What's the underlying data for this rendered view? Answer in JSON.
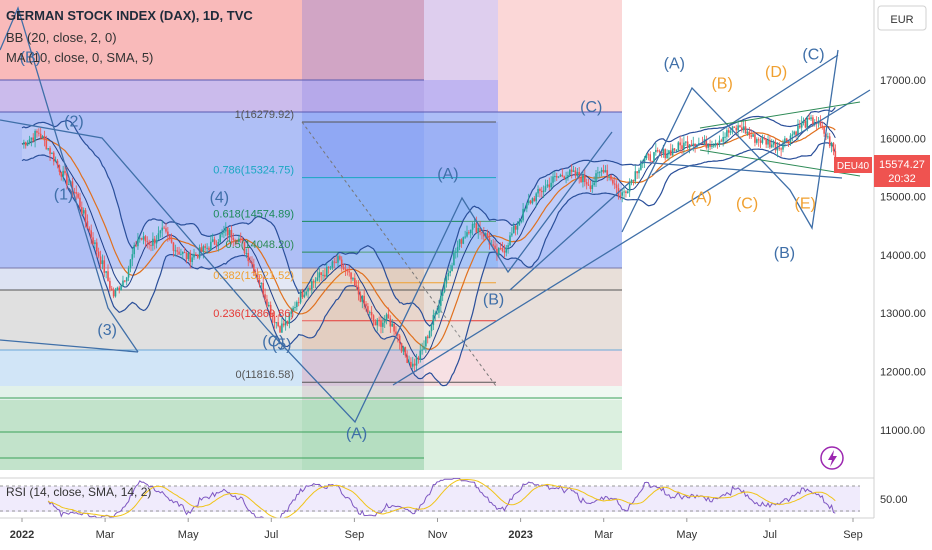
{
  "header": {
    "title": "GERMAN STOCK INDEX (DAX), 1D, TVC",
    "indicator_bb": "BB (20, close, 2, 0)",
    "indicator_ma": "MA (10, close, 0, SMA, 5)",
    "currency": "EUR"
  },
  "price_axis": {
    "ticks": [
      {
        "value": 17000,
        "label": "17000.00"
      },
      {
        "value": 16000,
        "label": "16000.00"
      },
      {
        "value": 15000,
        "label": "15000.00"
      },
      {
        "value": 14000,
        "label": "14000.00"
      },
      {
        "value": 13000,
        "label": "13000.00"
      },
      {
        "value": 12000,
        "label": "12000.00"
      },
      {
        "value": 11000,
        "label": "11000.00"
      }
    ],
    "symbol_badge": "DEU40",
    "last_price": "15574.27",
    "countdown": "20:32"
  },
  "time_axis": {
    "ticks": [
      {
        "t": 0,
        "label": "2022"
      },
      {
        "t": 2,
        "label": "Mar"
      },
      {
        "t": 4,
        "label": "May"
      },
      {
        "t": 6,
        "label": "Jul"
      },
      {
        "t": 8,
        "label": "Sep"
      },
      {
        "t": 10,
        "label": "Nov"
      },
      {
        "t": 12,
        "label": "2023"
      },
      {
        "t": 14,
        "label": "Mar"
      },
      {
        "t": 16,
        "label": "May"
      },
      {
        "t": 18,
        "label": "Jul"
      },
      {
        "t": 20,
        "label": "Sep"
      }
    ]
  },
  "rsi": {
    "label": "RSI (14, close, SMA, 14, 2)",
    "tick": "50.00"
  },
  "chart_data": {
    "type": "line",
    "x_unit": "months since Jan 2022",
    "y_unit": "index points",
    "ylim": [
      10550,
      17850
    ],
    "xlim": [
      0,
      20.4
    ],
    "price_series": [
      [
        0.0,
        15900
      ],
      [
        0.4,
        16100
      ],
      [
        0.7,
        15750
      ],
      [
        1.0,
        15350
      ],
      [
        1.3,
        15050
      ],
      [
        1.6,
        14450
      ],
      [
        1.9,
        13900
      ],
      [
        2.2,
        13300
      ],
      [
        2.5,
        13650
      ],
      [
        2.8,
        14300
      ],
      [
        3.1,
        14200
      ],
      [
        3.4,
        14400
      ],
      [
        3.7,
        14100
      ],
      [
        4.0,
        13950
      ],
      [
        4.3,
        14050
      ],
      [
        4.6,
        14200
      ],
      [
        4.9,
        14400
      ],
      [
        5.2,
        14300
      ],
      [
        5.5,
        13900
      ],
      [
        5.8,
        13400
      ],
      [
        6.0,
        13000
      ],
      [
        6.2,
        12750
      ],
      [
        6.4,
        12850
      ],
      [
        6.6,
        13200
      ],
      [
        6.8,
        13400
      ],
      [
        7.0,
        13550
      ],
      [
        7.3,
        13700
      ],
      [
        7.6,
        13900
      ],
      [
        7.9,
        13600
      ],
      [
        8.2,
        13200
      ],
      [
        8.5,
        12800
      ],
      [
        8.8,
        12900
      ],
      [
        9.0,
        12700
      ],
      [
        9.2,
        12300
      ],
      [
        9.4,
        12100
      ],
      [
        9.6,
        12300
      ],
      [
        9.8,
        12700
      ],
      [
        10.0,
        13100
      ],
      [
        10.2,
        13600
      ],
      [
        10.4,
        14000
      ],
      [
        10.6,
        14300
      ],
      [
        10.8,
        14500
      ],
      [
        11.0,
        14450
      ],
      [
        11.2,
        14300
      ],
      [
        11.4,
        14000
      ],
      [
        11.6,
        14100
      ],
      [
        11.9,
        14500
      ],
      [
        12.2,
        14900
      ],
      [
        12.5,
        15100
      ],
      [
        12.8,
        15300
      ],
      [
        13.1,
        15400
      ],
      [
        13.4,
        15350
      ],
      [
        13.7,
        15200
      ],
      [
        14.0,
        15500
      ],
      [
        14.2,
        15300
      ],
      [
        14.4,
        15000
      ],
      [
        14.6,
        15200
      ],
      [
        14.9,
        15600
      ],
      [
        15.2,
        15700
      ],
      [
        15.5,
        15750
      ],
      [
        15.8,
        15850
      ],
      [
        16.1,
        15950
      ],
      [
        16.4,
        15900
      ],
      [
        16.7,
        15950
      ],
      [
        17.0,
        16100
      ],
      [
        17.3,
        16200
      ],
      [
        17.6,
        16000
      ],
      [
        17.9,
        15950
      ],
      [
        18.2,
        15850
      ],
      [
        18.5,
        16050
      ],
      [
        18.8,
        16250
      ],
      [
        19.1,
        16300
      ],
      [
        19.3,
        16100
      ],
      [
        19.5,
        15850
      ],
      [
        19.6,
        15574
      ]
    ],
    "fib_levels": [
      {
        "level": "1",
        "price": 16279.92,
        "label": "1(16279.92)"
      },
      {
        "level": "0.786",
        "price": 15324.75,
        "label": "0.786(15324.75)"
      },
      {
        "level": "0.618",
        "price": 14574.89,
        "label": "0.618(14574.89)"
      },
      {
        "level": "0.5",
        "price": 14048.2,
        "label": "0.5(14048.20)"
      },
      {
        "level": "0.382",
        "price": 13521.52,
        "label": "0.382(13521.52)"
      },
      {
        "level": "0.236",
        "price": 12869.86,
        "label": "0.236(12869.86)"
      },
      {
        "level": "0",
        "price": 11816.58,
        "label": "0(11816.58)"
      }
    ],
    "wave_labels": [
      {
        "text": "(B)",
        "t": 0.2,
        "p": 17300,
        "color": "#3f6fa8"
      },
      {
        "text": "(2)",
        "t": 1.25,
        "p": 16200,
        "color": "#3f6fa8"
      },
      {
        "text": "(1)",
        "t": 1.0,
        "p": 14950,
        "color": "#3f6fa8"
      },
      {
        "text": "(3)",
        "t": 2.05,
        "p": 12630,
        "color": "#3f6fa8"
      },
      {
        "text": "(4)",
        "t": 4.75,
        "p": 14900,
        "color": "#3f6fa8"
      },
      {
        "text": "(C)",
        "t": 6.05,
        "p": 12430,
        "color": "#3f6fa8"
      },
      {
        "text": "(5)",
        "t": 6.25,
        "p": 12380,
        "color": "#3f6fa8"
      },
      {
        "text": "(A)",
        "t": 8.05,
        "p": 10850,
        "color": "#3f6fa8"
      },
      {
        "text": "(A)",
        "t": 10.25,
        "p": 15300,
        "color": "#3f6fa8"
      },
      {
        "text": "(B)",
        "t": 11.35,
        "p": 13150,
        "color": "#3f6fa8"
      },
      {
        "text": "(C)",
        "t": 13.7,
        "p": 16450,
        "color": "#3f6fa8"
      },
      {
        "text": "(A)",
        "t": 15.7,
        "p": 17200,
        "color": "#3f6fa8"
      },
      {
        "text": "(B)",
        "t": 18.35,
        "p": 13950,
        "color": "#3f6fa8"
      },
      {
        "text": "(C)",
        "t": 19.05,
        "p": 17350,
        "color": "#3f6fa8"
      },
      {
        "text": "(B)",
        "t": 16.85,
        "p": 16850,
        "color": "#f0a030"
      },
      {
        "text": "(D)",
        "t": 18.15,
        "p": 17050,
        "color": "#f0a030"
      },
      {
        "text": "(A)",
        "t": 16.35,
        "p": 14900,
        "color": "#f0a030"
      },
      {
        "text": "(C)",
        "t": 17.45,
        "p": 14800,
        "color": "#f0a030"
      },
      {
        "text": "(E)",
        "t": 18.85,
        "p": 14800,
        "color": "#f0a030"
      }
    ]
  }
}
